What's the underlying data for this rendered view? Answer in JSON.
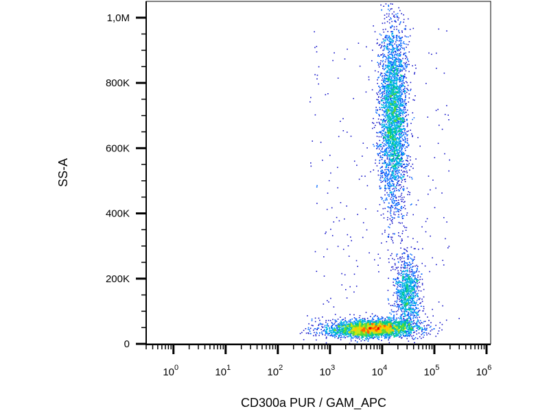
{
  "chart_data": {
    "type": "scatter",
    "subtype": "flow-cytometry-density-dot-plot",
    "title": "",
    "xlabel": "CD300a PUR / GAM_APC",
    "ylabel": "SS-A",
    "x_scale": "log",
    "x_range": [
      0.3,
      1200000
    ],
    "y_scale": "linear",
    "y_range": [
      0,
      1050000
    ],
    "x_ticks": [
      {
        "value": 1,
        "base": "10",
        "exp": "0"
      },
      {
        "value": 10,
        "base": "10",
        "exp": "1"
      },
      {
        "value": 100,
        "base": "10",
        "exp": "2"
      },
      {
        "value": 1000,
        "base": "10",
        "exp": "3"
      },
      {
        "value": 10000,
        "base": "10",
        "exp": "4"
      },
      {
        "value": 100000,
        "base": "10",
        "exp": "5"
      },
      {
        "value": 1000000,
        "base": "10",
        "exp": "6"
      }
    ],
    "y_ticks": [
      {
        "value": 0,
        "label": "0"
      },
      {
        "value": 200000,
        "label": "200K"
      },
      {
        "value": 400000,
        "label": "400K"
      },
      {
        "value": 600000,
        "label": "600K"
      },
      {
        "value": 800000,
        "label": "800K"
      },
      {
        "value": 1000000,
        "label": "1,0M"
      }
    ],
    "populations": [
      {
        "x_center": 16000,
        "x_log_spread": 0.13,
        "y_center": 700000,
        "y_spread": 145000,
        "count": 3200
      },
      {
        "x_center": 30000,
        "x_log_spread": 0.12,
        "y_center": 160000,
        "y_spread": 55000,
        "count": 1000
      },
      {
        "x_center": 7000,
        "x_log_spread": 0.42,
        "y_center": 50000,
        "y_spread": 14000,
        "count": 2600
      },
      {
        "x_center": 3000,
        "x_log_spread": 0.35,
        "y_center": 40000,
        "y_spread": 10000,
        "count": 500
      }
    ],
    "grid": false,
    "legend": "none",
    "colormap": [
      "#1010c8",
      "#0066ff",
      "#00b4e6",
      "#00c88c",
      "#5adc32",
      "#c8e614",
      "#ffc800",
      "#ff6400",
      "#e60000"
    ]
  }
}
